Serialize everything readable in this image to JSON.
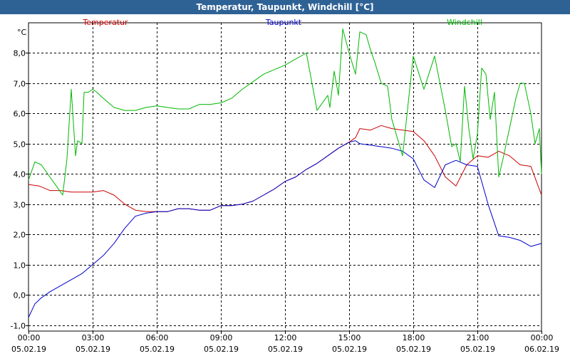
{
  "window": {
    "title": "Temperatur, Taupunkt, Windchill [°C]"
  },
  "chart_data": {
    "type": "line",
    "title": "Temperatur, Taupunkt, Windchill [°C]",
    "ylabel": "°C",
    "xlabel": "",
    "ylim": [
      -1.2,
      9.0
    ],
    "xlim": [
      0,
      24
    ],
    "grid": true,
    "legend": "top",
    "y_ticks": [
      -1.0,
      0.0,
      1.0,
      2.0,
      3.0,
      4.0,
      5.0,
      6.0,
      7.0,
      8.0
    ],
    "y_tick_labels": [
      "-1,0",
      "0,0",
      "1,0",
      "2,0",
      "3,0",
      "4,0",
      "5,0",
      "6,0",
      "7,0",
      "8,0"
    ],
    "x_ticks": [
      0,
      3,
      6,
      9,
      12,
      15,
      18,
      21,
      24
    ],
    "x_tick_times": [
      "00:00",
      "03:00",
      "06:00",
      "09:00",
      "12:00",
      "15:00",
      "18:00",
      "21:00",
      "00:00"
    ],
    "x_tick_dates": [
      "05.02.19",
      "05.02.19",
      "05.02.19",
      "05.02.19",
      "05.02.19",
      "05.02.19",
      "05.02.19",
      "05.02.19",
      "06.02.19"
    ],
    "series": [
      {
        "name": "Temperatur",
        "color": "#cc0000",
        "x": [
          0,
          0.5,
          1,
          1.5,
          2,
          2.5,
          3,
          3.5,
          4,
          4.5,
          5,
          5.5,
          6,
          6.5,
          7,
          7.5,
          8,
          8.5,
          9,
          9.5,
          10,
          10.5,
          11,
          11.5,
          12,
          12.5,
          13,
          13.5,
          14,
          14.5,
          15,
          15.3,
          15.5,
          16,
          16.5,
          17,
          17.5,
          18,
          18.5,
          19,
          19.5,
          20,
          20.5,
          21,
          21.5,
          22,
          22.5,
          23,
          23.5,
          24
        ],
        "y": [
          3.65,
          3.6,
          3.45,
          3.45,
          3.4,
          3.4,
          3.4,
          3.45,
          3.3,
          3.0,
          2.8,
          2.75,
          2.75,
          2.75,
          2.85,
          2.85,
          2.8,
          2.8,
          2.95,
          2.95,
          3.0,
          3.1,
          3.3,
          3.5,
          3.75,
          3.9,
          4.15,
          4.35,
          4.6,
          4.85,
          5.05,
          5.2,
          5.5,
          5.45,
          5.6,
          5.5,
          5.45,
          5.4,
          5.1,
          4.6,
          3.9,
          3.6,
          4.3,
          4.6,
          4.55,
          4.75,
          4.6,
          4.3,
          4.25,
          3.3
        ]
      },
      {
        "name": "Taupunkt",
        "color": "#0000cc",
        "x": [
          0,
          0.3,
          0.6,
          1,
          1.5,
          2,
          2.5,
          3,
          3.5,
          4,
          4.5,
          5,
          5.5,
          6,
          6.5,
          7,
          7.5,
          8,
          8.5,
          9,
          9.5,
          10,
          10.5,
          11,
          11.5,
          12,
          12.5,
          13,
          13.5,
          14,
          14.5,
          15,
          15.3,
          15.5,
          16,
          16.5,
          17,
          17.5,
          18,
          18.5,
          19,
          19.5,
          20,
          20.5,
          21,
          21.5,
          22,
          22.5,
          23,
          23.5,
          24
        ],
        "y": [
          -0.75,
          -0.3,
          -0.1,
          0.1,
          0.3,
          0.5,
          0.7,
          1.0,
          1.3,
          1.7,
          2.2,
          2.6,
          2.7,
          2.75,
          2.75,
          2.85,
          2.85,
          2.8,
          2.8,
          2.95,
          2.95,
          3.0,
          3.1,
          3.3,
          3.5,
          3.75,
          3.9,
          4.15,
          4.35,
          4.6,
          4.85,
          5.05,
          5.1,
          5.0,
          4.95,
          4.9,
          4.85,
          4.75,
          4.5,
          3.8,
          3.55,
          4.3,
          4.45,
          4.3,
          4.25,
          3.0,
          1.95,
          1.9,
          1.8,
          1.6,
          1.7
        ]
      },
      {
        "name": "Windchill",
        "color": "#00b800",
        "x": [
          0,
          0.3,
          0.6,
          1,
          1.3,
          1.6,
          1.8,
          2,
          2.2,
          2.3,
          2.5,
          2.6,
          2.8,
          3,
          3.2,
          3.5,
          4,
          4.5,
          5,
          5.5,
          6,
          6.5,
          7,
          7.5,
          8,
          8.5,
          9,
          9.5,
          10,
          10.5,
          11,
          11.5,
          12,
          12.5,
          13,
          13.5,
          14,
          14.1,
          14.3,
          14.5,
          14.7,
          15,
          15.3,
          15.5,
          15.8,
          16,
          16.2,
          16.5,
          16.8,
          17,
          17.5,
          18,
          18.5,
          19,
          19.5,
          19.8,
          20,
          20.2,
          20.4,
          20.6,
          20.8,
          21,
          21.2,
          21.4,
          21.6,
          21.8,
          22,
          22.2,
          22.5,
          22.8,
          23,
          23.2,
          23.5,
          23.7,
          23.9,
          24
        ],
        "y": [
          3.8,
          4.4,
          4.3,
          3.9,
          3.6,
          3.3,
          4.5,
          6.8,
          4.6,
          5.1,
          5.0,
          6.7,
          6.7,
          6.8,
          6.7,
          6.5,
          6.2,
          6.1,
          6.1,
          6.2,
          6.25,
          6.2,
          6.15,
          6.15,
          6.3,
          6.3,
          6.35,
          6.5,
          6.8,
          7.05,
          7.3,
          7.45,
          7.6,
          7.8,
          8.0,
          6.1,
          6.6,
          6.2,
          7.4,
          6.6,
          8.8,
          8.0,
          7.3,
          8.7,
          8.6,
          8.1,
          7.7,
          7.0,
          6.9,
          5.8,
          4.6,
          7.9,
          6.8,
          7.9,
          6.1,
          4.9,
          5.0,
          4.4,
          6.9,
          5.5,
          4.5,
          5.3,
          7.5,
          7.3,
          5.8,
          6.7,
          3.9,
          4.5,
          5.5,
          6.5,
          7.0,
          7.0,
          6.0,
          5.0,
          5.5,
          4.0
        ]
      }
    ]
  }
}
